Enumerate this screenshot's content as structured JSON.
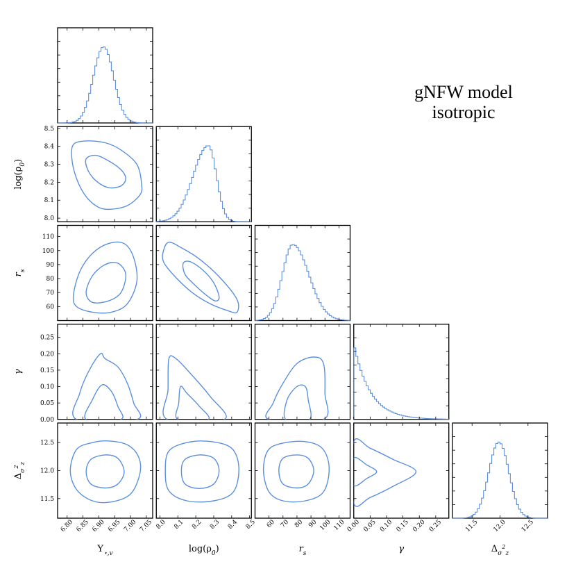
{
  "title": {
    "line1": "gNFW model",
    "line2": "isotropic"
  },
  "colors": {
    "line": "#5b8fe0",
    "frame": "#000000"
  },
  "chart_data": {
    "type": "corner",
    "parameters": [
      {
        "key": "ups",
        "label": "Υ⋆,v",
        "range": [
          6.77,
          7.07
        ],
        "ticks": [
          6.8,
          6.85,
          6.9,
          6.95,
          7.0,
          7.05
        ],
        "tick_labels": [
          "6.80",
          "6.85",
          "6.90",
          "6.95",
          "7.00",
          "7.05"
        ]
      },
      {
        "key": "rho",
        "label": "log(ρ0)",
        "range": [
          7.98,
          8.51
        ],
        "ticks": [
          8.0,
          8.1,
          8.2,
          8.3,
          8.4,
          8.5
        ],
        "tick_labels": [
          "8.0",
          "8.1",
          "8.2",
          "8.3",
          "8.4",
          "8.5"
        ]
      },
      {
        "key": "rs",
        "label": "rs",
        "range": [
          50,
          118
        ],
        "ticks": [
          60,
          70,
          80,
          90,
          100,
          110
        ],
        "tick_labels": [
          "60",
          "70",
          "80",
          "90",
          "100",
          "110"
        ]
      },
      {
        "key": "gamma",
        "label": "γ",
        "range": [
          0.0,
          0.29
        ],
        "ticks": [
          0.0,
          0.05,
          0.1,
          0.15,
          0.2,
          0.25
        ],
        "tick_labels": [
          "0.00",
          "0.05",
          "0.10",
          "0.15",
          "0.20",
          "0.25"
        ]
      },
      {
        "key": "delta",
        "label": "Δσ²z",
        "range": [
          11.15,
          12.85
        ],
        "ticks": [
          11.5,
          12.0,
          12.5
        ],
        "tick_labels": [
          "11.5",
          "12.0",
          "12.5"
        ]
      }
    ],
    "marginals": [
      {
        "param": "ups",
        "shape": "gauss",
        "mean": 6.915,
        "sigma": 0.032
      },
      {
        "param": "rho",
        "shape": "skew",
        "peak": 8.27,
        "left_sigma": 0.085,
        "right_sigma": 0.045
      },
      {
        "param": "rs",
        "shape": "skew",
        "peak": 77,
        "left_sigma": 7.5,
        "right_sigma": 11.5
      },
      {
        "param": "gamma",
        "shape": "decay",
        "scale": 0.05
      },
      {
        "param": "delta",
        "shape": "gauss",
        "mean": 11.98,
        "sigma": 0.18
      }
    ],
    "contours": [
      {
        "x": "ups",
        "y": "rho",
        "inner": [
          [
            6.86,
            8.33
          ],
          [
            6.89,
            8.35
          ],
          [
            6.93,
            8.32
          ],
          [
            6.97,
            8.27
          ],
          [
            6.985,
            8.22
          ],
          [
            6.97,
            8.18
          ],
          [
            6.93,
            8.17
          ],
          [
            6.89,
            8.21
          ],
          [
            6.865,
            8.27
          ]
        ],
        "outer": [
          [
            6.82,
            8.41
          ],
          [
            6.86,
            8.43
          ],
          [
            6.92,
            8.42
          ],
          [
            6.97,
            8.38
          ],
          [
            7.02,
            8.3
          ],
          [
            7.035,
            8.19
          ],
          [
            7.03,
            8.13
          ],
          [
            6.99,
            8.07
          ],
          [
            6.94,
            8.05
          ],
          [
            6.9,
            8.06
          ],
          [
            6.86,
            8.12
          ],
          [
            6.83,
            8.22
          ],
          [
            6.815,
            8.33
          ]
        ]
      },
      {
        "x": "ups",
        "y": "rs",
        "inner": [
          [
            6.86,
            70
          ],
          [
            6.88,
            82
          ],
          [
            6.92,
            90
          ],
          [
            6.96,
            91
          ],
          [
            6.985,
            83
          ],
          [
            6.97,
            70
          ],
          [
            6.93,
            64
          ],
          [
            6.88,
            63
          ]
        ],
        "outer": [
          [
            6.82,
            68
          ],
          [
            6.84,
            85
          ],
          [
            6.88,
            98
          ],
          [
            6.93,
            105
          ],
          [
            6.98,
            105
          ],
          [
            7.01,
            95
          ],
          [
            7.02,
            78
          ],
          [
            6.99,
            62
          ],
          [
            6.94,
            56
          ],
          [
            6.88,
            56
          ],
          [
            6.83,
            60
          ]
        ]
      },
      {
        "x": "ups",
        "y": "gamma",
        "inner": [
          [
            6.86,
            0.0
          ],
          [
            6.88,
            0.06
          ],
          [
            6.91,
            0.105
          ],
          [
            6.94,
            0.085
          ],
          [
            6.96,
            0.04
          ],
          [
            6.97,
            0.0
          ]
        ],
        "outer": [
          [
            6.83,
            0.0
          ],
          [
            6.84,
            0.08
          ],
          [
            6.87,
            0.15
          ],
          [
            6.905,
            0.2
          ],
          [
            6.92,
            0.185
          ],
          [
            6.96,
            0.16
          ],
          [
            6.99,
            0.11
          ],
          [
            7.01,
            0.05
          ],
          [
            7.02,
            0.0
          ]
        ]
      },
      {
        "x": "ups",
        "y": "delta",
        "inner": [
          [
            6.86,
            11.98
          ],
          [
            6.875,
            12.2
          ],
          [
            6.92,
            12.28
          ],
          [
            6.96,
            12.22
          ],
          [
            6.98,
            11.98
          ],
          [
            6.96,
            11.76
          ],
          [
            6.92,
            11.69
          ],
          [
            6.875,
            11.76
          ]
        ],
        "outer": [
          [
            6.81,
            12.0
          ],
          [
            6.83,
            12.38
          ],
          [
            6.88,
            12.5
          ],
          [
            6.93,
            12.53
          ],
          [
            6.99,
            12.46
          ],
          [
            7.025,
            12.25
          ],
          [
            7.03,
            11.95
          ],
          [
            7.0,
            11.58
          ],
          [
            6.94,
            11.44
          ],
          [
            6.88,
            11.46
          ],
          [
            6.83,
            11.66
          ]
        ]
      },
      {
        "x": "rho",
        "y": "rs",
        "inner": [
          [
            8.13,
            91
          ],
          [
            8.17,
            92
          ],
          [
            8.24,
            86
          ],
          [
            8.3,
            77
          ],
          [
            8.33,
            67
          ],
          [
            8.31,
            64
          ],
          [
            8.26,
            68
          ],
          [
            8.19,
            76
          ],
          [
            8.14,
            83
          ]
        ],
        "outer": [
          [
            8.02,
            100
          ],
          [
            8.05,
            106
          ],
          [
            8.12,
            102
          ],
          [
            8.22,
            94
          ],
          [
            8.34,
            80
          ],
          [
            8.43,
            65
          ],
          [
            8.43,
            56
          ],
          [
            8.38,
            57
          ],
          [
            8.28,
            62
          ],
          [
            8.18,
            70
          ],
          [
            8.08,
            82
          ],
          [
            8.02,
            92
          ]
        ]
      },
      {
        "x": "rho",
        "y": "gamma",
        "inner": [
          [
            8.1,
            0.0
          ],
          [
            8.105,
            0.05
          ],
          [
            8.115,
            0.1
          ],
          [
            8.15,
            0.08
          ],
          [
            8.22,
            0.04
          ],
          [
            8.27,
            0.0
          ]
        ],
        "outer": [
          [
            8.04,
            0.0
          ],
          [
            8.045,
            0.09
          ],
          [
            8.05,
            0.185
          ],
          [
            8.09,
            0.185
          ],
          [
            8.17,
            0.14
          ],
          [
            8.28,
            0.07
          ],
          [
            8.36,
            0.0
          ]
        ]
      },
      {
        "x": "rho",
        "y": "delta",
        "inner": [
          [
            8.12,
            12.0
          ],
          [
            8.14,
            12.2
          ],
          [
            8.22,
            12.28
          ],
          [
            8.3,
            12.22
          ],
          [
            8.33,
            12.0
          ],
          [
            8.3,
            11.76
          ],
          [
            8.22,
            11.68
          ],
          [
            8.14,
            11.76
          ]
        ],
        "outer": [
          [
            8.03,
            12.0
          ],
          [
            8.05,
            12.35
          ],
          [
            8.15,
            12.5
          ],
          [
            8.28,
            12.52
          ],
          [
            8.4,
            12.4
          ],
          [
            8.44,
            12.05
          ],
          [
            8.41,
            11.62
          ],
          [
            8.3,
            11.46
          ],
          [
            8.15,
            11.46
          ],
          [
            8.05,
            11.64
          ]
        ]
      },
      {
        "x": "rs",
        "y": "gamma",
        "inner": [
          [
            72,
            0.0
          ],
          [
            73,
            0.06
          ],
          [
            80,
            0.1
          ],
          [
            86,
            0.1
          ],
          [
            88,
            0.06
          ],
          [
            89,
            0.0
          ]
        ],
        "outer": [
          [
            60,
            0.0
          ],
          [
            63,
            0.05
          ],
          [
            70,
            0.11
          ],
          [
            80,
            0.17
          ],
          [
            92,
            0.19
          ],
          [
            99,
            0.17
          ],
          [
            100,
            0.08
          ],
          [
            99,
            0.0
          ]
        ]
      },
      {
        "x": "rs",
        "y": "delta",
        "inner": [
          [
            67,
            12.0
          ],
          [
            70,
            12.22
          ],
          [
            80,
            12.28
          ],
          [
            88,
            12.22
          ],
          [
            92,
            12.0
          ],
          [
            88,
            11.76
          ],
          [
            80,
            11.69
          ],
          [
            70,
            11.76
          ]
        ],
        "outer": [
          [
            56,
            12.0
          ],
          [
            59,
            12.35
          ],
          [
            68,
            12.48
          ],
          [
            85,
            12.52
          ],
          [
            98,
            12.4
          ],
          [
            103,
            12.05
          ],
          [
            99,
            11.62
          ],
          [
            86,
            11.46
          ],
          [
            70,
            11.46
          ],
          [
            60,
            11.62
          ]
        ]
      },
      {
        "x": "gamma",
        "y": "delta",
        "inner": [
          [
            0.0,
            12.22
          ],
          [
            0.04,
            12.1
          ],
          [
            0.07,
            11.98
          ],
          [
            0.04,
            11.86
          ],
          [
            0.0,
            11.74
          ]
        ],
        "outer": [
          [
            0.0,
            12.51
          ],
          [
            0.05,
            12.4
          ],
          [
            0.12,
            12.2
          ],
          [
            0.19,
            11.98
          ],
          [
            0.12,
            11.72
          ],
          [
            0.05,
            11.52
          ],
          [
            0.0,
            11.42
          ]
        ]
      }
    ]
  }
}
